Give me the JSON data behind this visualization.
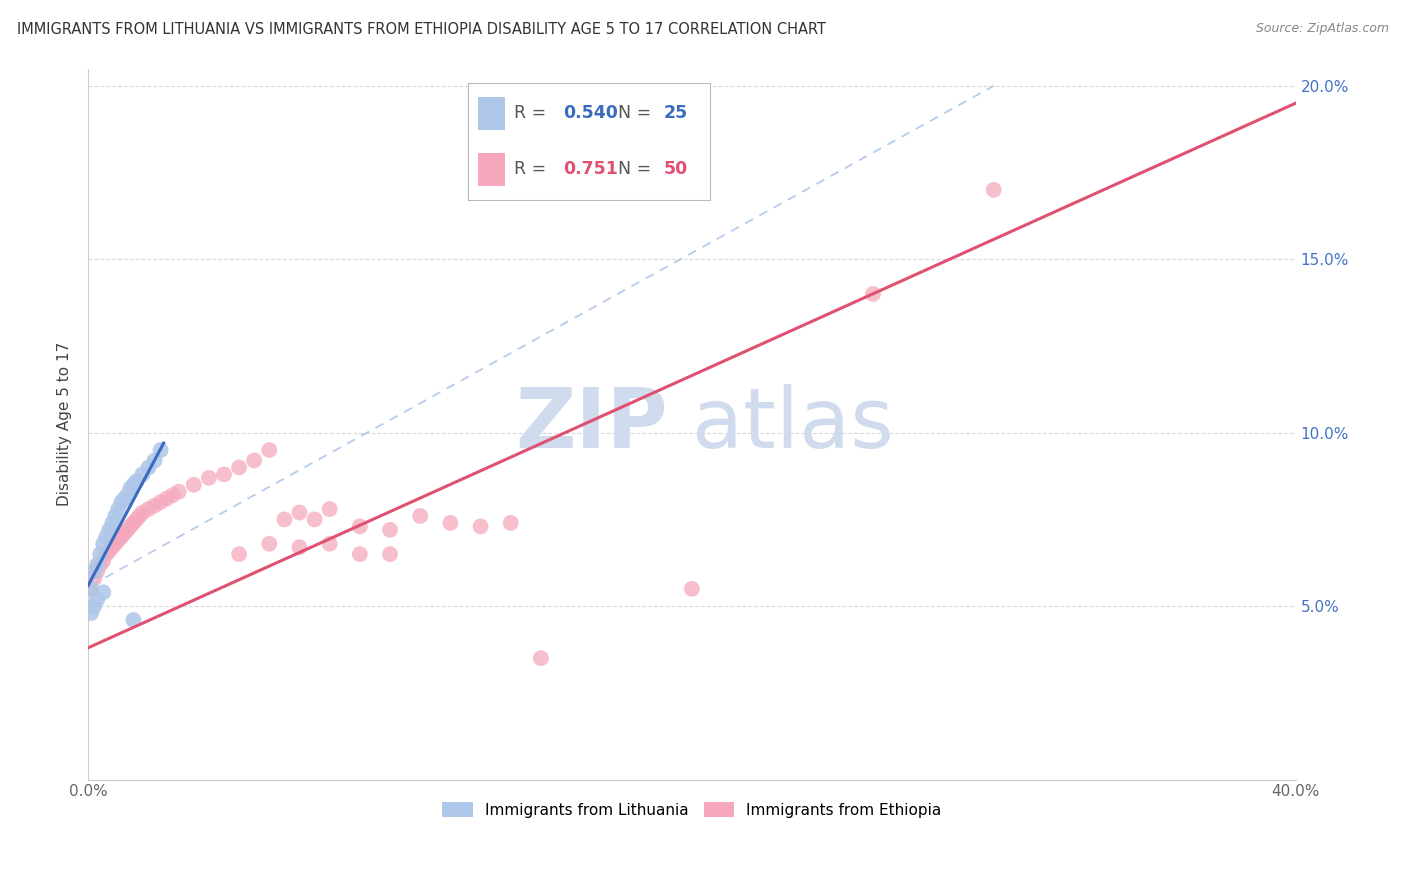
{
  "title": "IMMIGRANTS FROM LITHUANIA VS IMMIGRANTS FROM ETHIOPIA DISABILITY AGE 5 TO 17 CORRELATION CHART",
  "source": "Source: ZipAtlas.com",
  "ylabel": "Disability Age 5 to 17",
  "xmin": 0.0,
  "xmax": 0.4,
  "ymin": 0.0,
  "ymax": 0.205,
  "yticks_right": [
    0.05,
    0.1,
    0.15,
    0.2
  ],
  "ytick_labels_right": [
    "5.0%",
    "10.0%",
    "15.0%",
    "20.0%"
  ],
  "xtick_positions": [
    0.0,
    0.05,
    0.1,
    0.15,
    0.2,
    0.25,
    0.3,
    0.35,
    0.4
  ],
  "xtick_labels": [
    "0.0%",
    "",
    "",
    "",
    "",
    "",
    "",
    "",
    "40.0%"
  ],
  "blue_R": 0.54,
  "blue_N": 25,
  "pink_R": 0.751,
  "pink_N": 50,
  "blue_color": "#aec6e8",
  "pink_color": "#f5a8bc",
  "blue_line_color": "#3a6bbf",
  "pink_line_color": "#e05070",
  "blue_scatter_x": [
    0.001,
    0.002,
    0.003,
    0.004,
    0.005,
    0.006,
    0.007,
    0.008,
    0.009,
    0.01,
    0.011,
    0.012,
    0.013,
    0.014,
    0.015,
    0.016,
    0.018,
    0.02,
    0.022,
    0.024,
    0.001,
    0.002,
    0.003,
    0.005,
    0.015
  ],
  "blue_scatter_y": [
    0.055,
    0.06,
    0.062,
    0.065,
    0.068,
    0.07,
    0.072,
    0.074,
    0.076,
    0.078,
    0.08,
    0.081,
    0.082,
    0.084,
    0.085,
    0.086,
    0.088,
    0.09,
    0.092,
    0.095,
    0.048,
    0.05,
    0.052,
    0.054,
    0.046
  ],
  "pink_scatter_x": [
    0.001,
    0.002,
    0.003,
    0.004,
    0.005,
    0.006,
    0.007,
    0.008,
    0.009,
    0.01,
    0.011,
    0.012,
    0.013,
    0.014,
    0.015,
    0.016,
    0.017,
    0.018,
    0.02,
    0.022,
    0.024,
    0.026,
    0.028,
    0.03,
    0.035,
    0.04,
    0.045,
    0.05,
    0.055,
    0.06,
    0.065,
    0.07,
    0.075,
    0.08,
    0.09,
    0.1,
    0.11,
    0.12,
    0.13,
    0.14,
    0.05,
    0.06,
    0.07,
    0.08,
    0.09,
    0.1,
    0.15,
    0.2,
    0.26,
    0.3
  ],
  "pink_scatter_y": [
    0.055,
    0.058,
    0.06,
    0.062,
    0.063,
    0.065,
    0.066,
    0.067,
    0.068,
    0.069,
    0.07,
    0.071,
    0.072,
    0.073,
    0.074,
    0.075,
    0.076,
    0.077,
    0.078,
    0.079,
    0.08,
    0.081,
    0.082,
    0.083,
    0.085,
    0.087,
    0.088,
    0.09,
    0.092,
    0.095,
    0.075,
    0.077,
    0.075,
    0.078,
    0.073,
    0.072,
    0.076,
    0.074,
    0.073,
    0.074,
    0.065,
    0.068,
    0.067,
    0.068,
    0.065,
    0.065,
    0.035,
    0.055,
    0.14,
    0.17
  ],
  "watermark_zip": "ZIP",
  "watermark_atlas": "atlas",
  "background_color": "#ffffff",
  "grid_color": "#d0d0d0"
}
